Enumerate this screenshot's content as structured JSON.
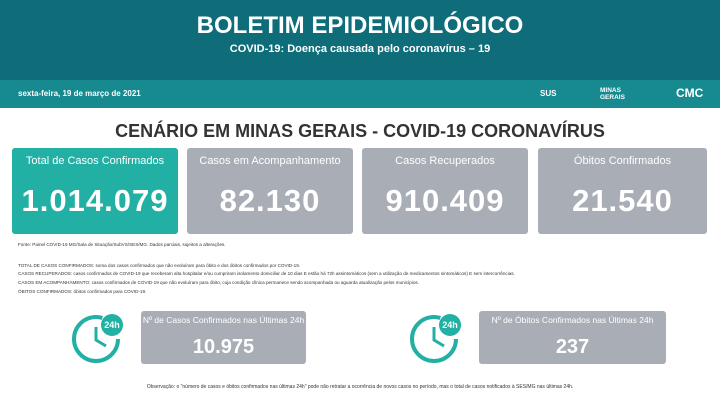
{
  "header": {
    "title": "BOLETIM EPIDEMIOLÓGICO",
    "subtitle": "COVID-19: Doença causada pelo coronavírus – 19",
    "date": "sexta-feira, 19 de março de 2021",
    "logos": [
      "SUS",
      "MINAS GERAIS",
      "CMC"
    ]
  },
  "section_title": "CENÁRIO EM MINAS GERAIS - COVID-19 CORONAVÍRUS",
  "cards": [
    {
      "label": "Total de Casos Confirmados",
      "value": "1.014.079"
    },
    {
      "label": "Casos em Acompanhamento",
      "value": "82.130"
    },
    {
      "label": "Casos Recuperados",
      "value": "910.409"
    },
    {
      "label": "Óbitos Confirmados",
      "value": "21.540"
    }
  ],
  "source": "Fonte: Painel COVID-19 MG/Sala de Situação/SubVS/SES/MG. Dados parciais, sujeitos a alterações.",
  "definitions": [
    "TOTAL DE CASOS CONFIRMADOS: soma dos casos confirmados que não evoluíram para óbito e dos óbitos confirmados por COVID-19.",
    "CASOS RECUPERADOS: casos confirmados de COVID-19 que receberam alta hospitalar e/ou cumpriram isolamento domiciliar de 10 dias E estão há 72h assintomáticos (sem a utilização de medicamentos sintomáticos) E sem intercorrências.",
    "CASOS EM ACOMPANHAMENTO: casos confirmados de COVID-19 que não evoluíram para óbito, cuja condição clínica permanece sendo acompanhada ou aguarda atualização pelos municípios.",
    "ÓBITOS CONFIRMADOS: óbitos confirmados para COVID-19."
  ],
  "last24": [
    {
      "icon": "24h",
      "label": "Nº de Casos Confirmados nas Últimas 24h",
      "value": "10.975"
    },
    {
      "icon": "24h",
      "label": "Nº de Óbitos Confirmados nas Últimas 24h",
      "value": "237"
    }
  ],
  "note": "Observação: o \"número de casos e óbitos confirmados nas últimas 24h\" pode não retratar a ocorrência de novos casos no período, mas o total de casos notificados à SES/MG nas últimas 24h."
}
